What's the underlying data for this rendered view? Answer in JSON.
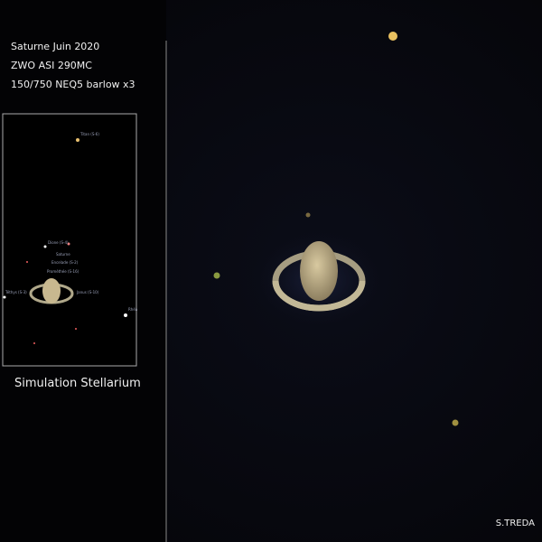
{
  "caption": {
    "lines": [
      "Saturne Juin 2020",
      "ZWO ASI 290MC",
      "150/750 NEQ5 barlow x3"
    ]
  },
  "inset": {
    "title": "Simulation Stellarium",
    "labels": [
      "Titan (S-6)",
      "Dione (S-4)",
      "Saturne",
      "Encelade (S-2)",
      "Prométhée (S-16)",
      "Téthys (S-3)",
      "Janus (S-10)",
      "Rhéa"
    ]
  },
  "credit": "S.TREDA"
}
